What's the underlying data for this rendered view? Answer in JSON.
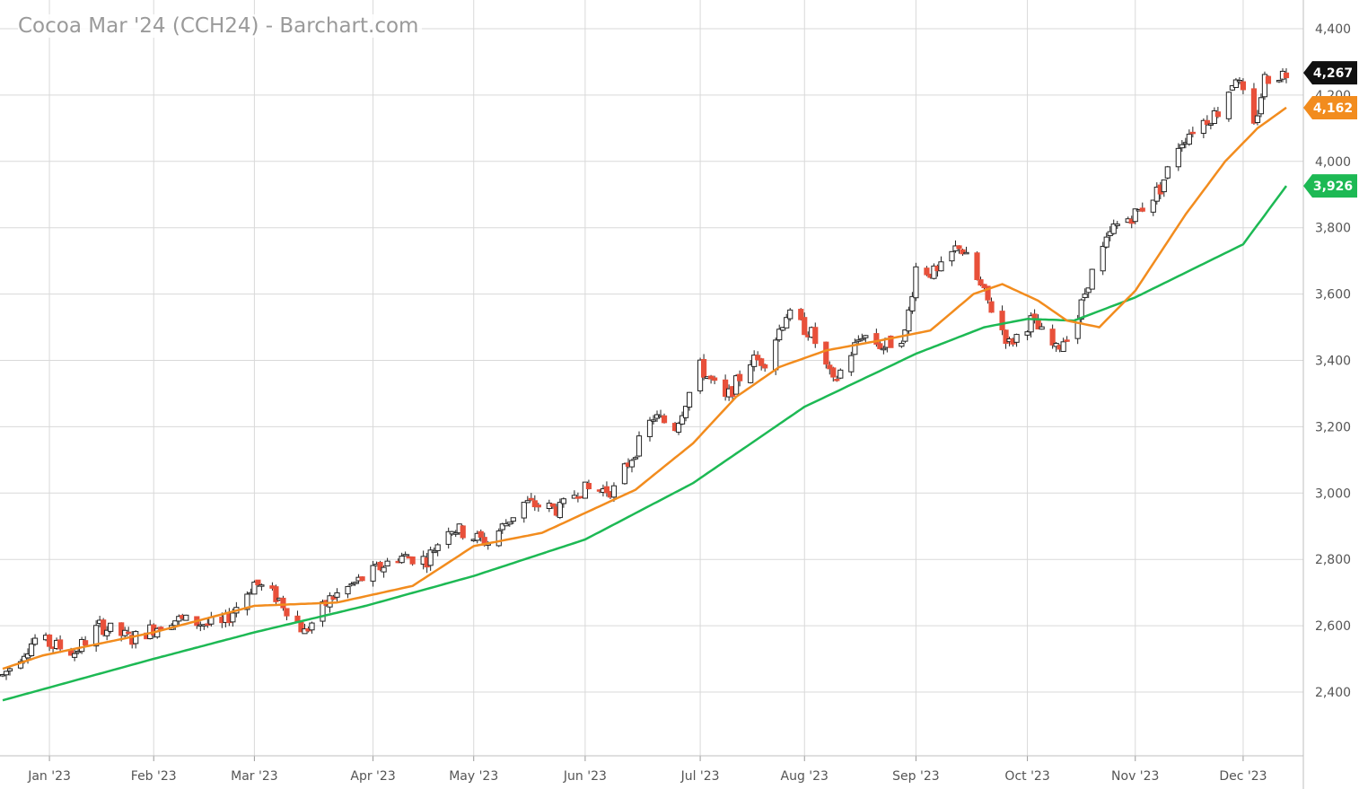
{
  "title": "Cocoa Mar '24 (CCH24) - Barchart.com",
  "chart_data": {
    "type": "candlestick",
    "title": "Cocoa Mar '24 (CCH24) - Barchart.com",
    "ylim": [
      2150,
      4450
    ],
    "y_ticks": [
      2400,
      2600,
      2800,
      3000,
      3200,
      3400,
      3600,
      3800,
      4000,
      4200,
      4400
    ],
    "y_tick_labels": [
      "2,400",
      "2,600",
      "2,800",
      "3,000",
      "3,200",
      "3,400",
      "3,600",
      "3,800",
      "4,000",
      "4,200",
      "4,400"
    ],
    "x_range": [
      "2022-12-21",
      "2023-12-14"
    ],
    "x_ticks": [
      {
        "date": "2023-01-03",
        "label": "Jan '23"
      },
      {
        "date": "2023-02-01",
        "label": "Feb '23"
      },
      {
        "date": "2023-03-01",
        "label": "Mar '23"
      },
      {
        "date": "2023-04-03",
        "label": "Apr '23"
      },
      {
        "date": "2023-05-01",
        "label": "May '23"
      },
      {
        "date": "2023-06-01",
        "label": "Jun '23"
      },
      {
        "date": "2023-07-03",
        "label": "Jul '23"
      },
      {
        "date": "2023-08-01",
        "label": "Aug '23"
      },
      {
        "date": "2023-09-01",
        "label": "Sep '23"
      },
      {
        "date": "2023-10-02",
        "label": "Oct '23"
      },
      {
        "date": "2023-11-01",
        "label": "Nov '23"
      },
      {
        "date": "2023-12-01",
        "label": "Dec '23"
      }
    ],
    "colors": {
      "up": "#ffffff",
      "down": "#e8503a",
      "outline": "#222222",
      "ma_fast": "#f28c1e",
      "ma_slow": "#1db954",
      "grid": "#d9d9d9",
      "last_price": "#111111"
    },
    "price_anchors": [
      [
        "2022-12-21",
        2450
      ],
      [
        "2022-12-30",
        2560
      ],
      [
        "2023-01-10",
        2520
      ],
      [
        "2023-01-17",
        2600
      ],
      [
        "2023-01-26",
        2560
      ],
      [
        "2023-02-06",
        2620
      ],
      [
        "2023-02-20",
        2600
      ],
      [
        "2023-03-01",
        2730
      ],
      [
        "2023-03-08",
        2680
      ],
      [
        "2023-03-15",
        2580
      ],
      [
        "2023-03-22",
        2680
      ],
      [
        "2023-04-10",
        2810
      ],
      [
        "2023-04-18",
        2800
      ],
      [
        "2023-04-24",
        2900
      ],
      [
        "2023-05-05",
        2850
      ],
      [
        "2023-05-15",
        2970
      ],
      [
        "2023-05-25",
        2950
      ],
      [
        "2023-05-30",
        3010
      ],
      [
        "2023-06-09",
        3010
      ],
      [
        "2023-06-20",
        3230
      ],
      [
        "2023-06-26",
        3200
      ],
      [
        "2023-07-03",
        3380
      ],
      [
        "2023-07-10",
        3280
      ],
      [
        "2023-07-17",
        3400
      ],
      [
        "2023-07-21",
        3400
      ],
      [
        "2023-07-27",
        3540
      ],
      [
        "2023-08-03",
        3480
      ],
      [
        "2023-08-09",
        3330
      ],
      [
        "2023-08-17",
        3480
      ],
      [
        "2023-08-23",
        3440
      ],
      [
        "2023-08-29",
        3480
      ],
      [
        "2023-09-01",
        3680
      ],
      [
        "2023-09-07",
        3660
      ],
      [
        "2023-09-13",
        3750
      ],
      [
        "2023-09-19",
        3620
      ],
      [
        "2023-09-27",
        3450
      ],
      [
        "2023-10-03",
        3520
      ],
      [
        "2023-10-10",
        3430
      ],
      [
        "2023-10-16",
        3530
      ],
      [
        "2023-10-19",
        3640
      ],
      [
        "2023-10-26",
        3800
      ],
      [
        "2023-11-02",
        3850
      ],
      [
        "2023-11-08",
        3920
      ],
      [
        "2023-11-13",
        4050
      ],
      [
        "2023-11-17",
        4100
      ],
      [
        "2023-11-24",
        4150
      ],
      [
        "2023-11-29",
        4260
      ],
      [
        "2023-12-04",
        4100
      ],
      [
        "2023-12-07",
        4250
      ],
      [
        "2023-12-13",
        4267
      ]
    ],
    "ma_fast_points": [
      [
        "2022-12-21",
        2470
      ],
      [
        "2023-01-01",
        2510
      ],
      [
        "2023-02-01",
        2580
      ],
      [
        "2023-03-01",
        2660
      ],
      [
        "2023-03-24",
        2670
      ],
      [
        "2023-04-14",
        2720
      ],
      [
        "2023-05-01",
        2840
      ],
      [
        "2023-05-20",
        2880
      ],
      [
        "2023-06-01",
        2940
      ],
      [
        "2023-06-15",
        3010
      ],
      [
        "2023-07-01",
        3150
      ],
      [
        "2023-07-13",
        3290
      ],
      [
        "2023-07-25",
        3380
      ],
      [
        "2023-08-07",
        3430
      ],
      [
        "2023-08-22",
        3460
      ],
      [
        "2023-09-05",
        3490
      ],
      [
        "2023-09-17",
        3600
      ],
      [
        "2023-09-25",
        3630
      ],
      [
        "2023-10-05",
        3580
      ],
      [
        "2023-10-13",
        3520
      ],
      [
        "2023-10-22",
        3500
      ],
      [
        "2023-11-01",
        3610
      ],
      [
        "2023-11-15",
        3840
      ],
      [
        "2023-11-26",
        4000
      ],
      [
        "2023-12-05",
        4100
      ],
      [
        "2023-12-13",
        4162
      ]
    ],
    "ma_slow_points": [
      [
        "2022-12-21",
        2375
      ],
      [
        "2023-02-01",
        2500
      ],
      [
        "2023-03-01",
        2580
      ],
      [
        "2023-04-01",
        2660
      ],
      [
        "2023-05-01",
        2750
      ],
      [
        "2023-06-01",
        2860
      ],
      [
        "2023-07-01",
        3030
      ],
      [
        "2023-08-01",
        3260
      ],
      [
        "2023-09-01",
        3420
      ],
      [
        "2023-09-20",
        3500
      ],
      [
        "2023-10-02",
        3525
      ],
      [
        "2023-10-15",
        3520
      ],
      [
        "2023-11-01",
        3590
      ],
      [
        "2023-12-01",
        3750
      ],
      [
        "2023-12-13",
        3926
      ]
    ],
    "last_price": {
      "value": 4267,
      "label": "4,267"
    },
    "ma_fast_last": {
      "value": 4162,
      "label": "4,162"
    },
    "ma_slow_last": {
      "value": 3926,
      "label": "3,926"
    }
  }
}
